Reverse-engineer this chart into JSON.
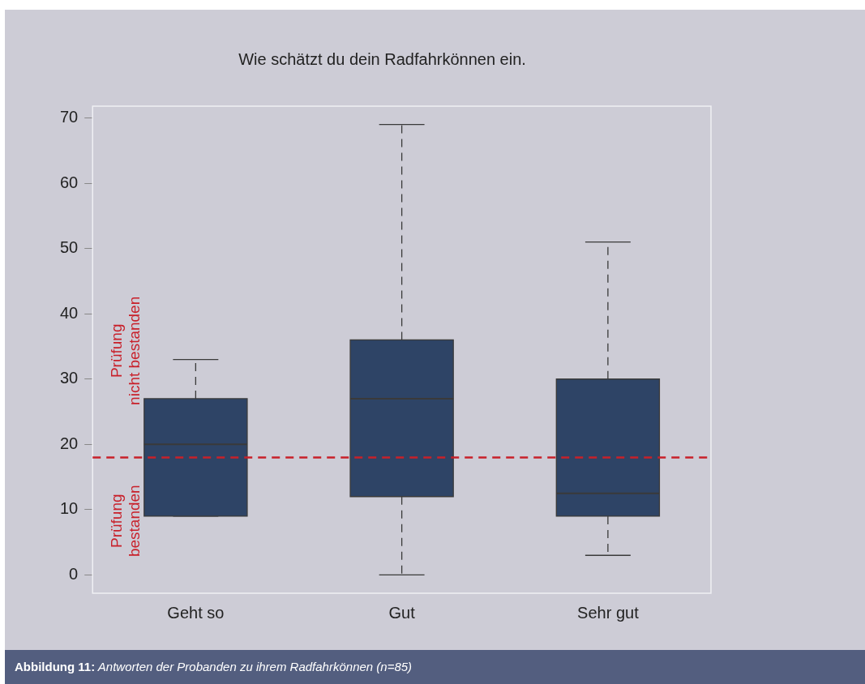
{
  "chart_data": {
    "type": "box",
    "title": "Wie schätzt du dein Radfahrkönnen ein.",
    "categories": [
      "Geht so",
      "Gut",
      "Sehr gut"
    ],
    "color": "#2e4466",
    "boxes": [
      {
        "low": 9,
        "q1": 9,
        "median": 20,
        "q3": 27,
        "high": 33
      },
      {
        "low": 0,
        "q1": 12,
        "median": 27,
        "q3": 36,
        "high": 69
      },
      {
        "low": 3,
        "q1": 9,
        "median": 12.5,
        "q3": 30,
        "high": 51
      }
    ],
    "ylim": [
      -2.8,
      71.8
    ],
    "yticks": [
      0,
      10,
      20,
      30,
      40,
      50,
      60,
      70
    ],
    "grid": false,
    "legend": false,
    "ref_lines": [
      {
        "axis": "y",
        "value": 18,
        "color": "#c8202a",
        "line_style": "dashed"
      }
    ],
    "annotations": [
      "Prüfung nicht bestanden",
      "Prüfung bestanden",
      "Abbildung 11: Antworten der Probanden zu ihrem Radfahrkönnen (n=85)"
    ]
  }
}
